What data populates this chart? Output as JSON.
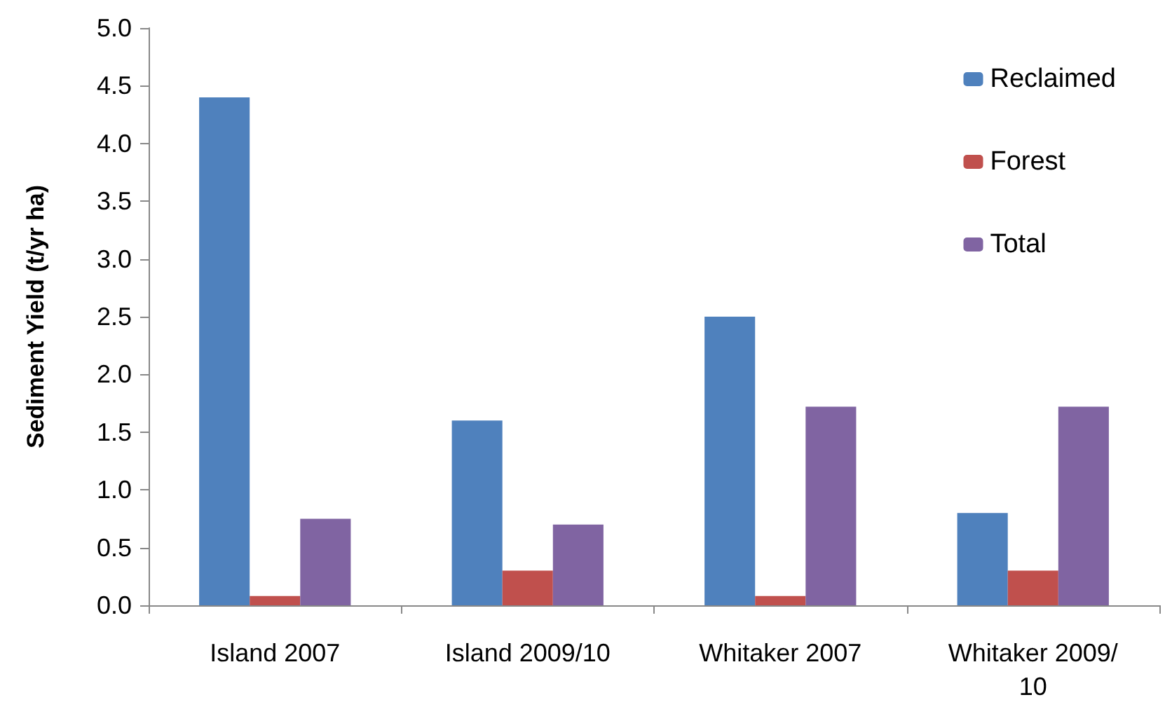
{
  "chart_data": {
    "type": "bar",
    "ylabel": "Sediment Yield (t/yr ha)",
    "categories": [
      "Island 2007",
      "Island 2009/10",
      "Whitaker 2007",
      "Whitaker 2009/10"
    ],
    "series": [
      {
        "name": "Reclaimed",
        "color": "#4f81bd",
        "values": [
          4.4,
          1.6,
          2.5,
          0.8
        ]
      },
      {
        "name": "Forest",
        "color": "#c0504d",
        "values": [
          0.08,
          0.3,
          0.08,
          0.3
        ]
      },
      {
        "name": "Total",
        "color": "#8064a2",
        "values": [
          0.75,
          0.7,
          1.72,
          1.72
        ]
      }
    ],
    "ylim": [
      0,
      5
    ],
    "yticks": [
      {
        "value": 0,
        "label": "0.0"
      },
      {
        "value": 0.5,
        "label": "0.5"
      },
      {
        "value": 1,
        "label": "1.0"
      },
      {
        "value": 1.5,
        "label": "1.5"
      },
      {
        "value": 2,
        "label": "2.0"
      },
      {
        "value": 2.5,
        "label": "2.5"
      },
      {
        "value": 3,
        "label": "3.0"
      },
      {
        "value": 3.5,
        "label": "3.5"
      },
      {
        "value": 4,
        "label": "4.0"
      },
      {
        "value": 4.5,
        "label": "4.5"
      },
      {
        "value": 5,
        "label": "5.0"
      }
    ],
    "grid": false,
    "legend": "top right"
  }
}
